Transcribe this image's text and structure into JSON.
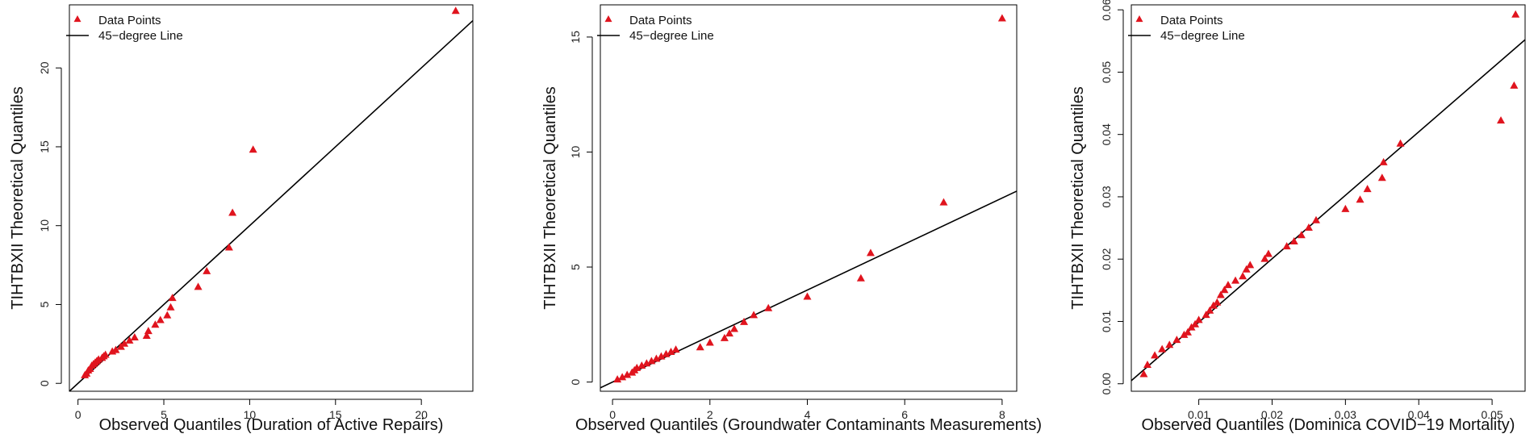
{
  "colors": {
    "points": "#e0141e",
    "line": "#000000",
    "frame": "#000000"
  },
  "legend": {
    "points_label": "Data Points",
    "line_label": "45−degree Line"
  },
  "chart_data": [
    {
      "type": "scatter",
      "title": "",
      "xlabel": "Observed Quantiles (Duration of Active Repairs)",
      "ylabel": "TIHTBXII Theoretical Quantiles",
      "xlim": [
        -0.5,
        23
      ],
      "ylim": [
        -0.5,
        24
      ],
      "xticks": [
        0,
        5,
        10,
        15,
        20
      ],
      "yticks": [
        0,
        5,
        10,
        15,
        20
      ],
      "xtick_labels": [
        "0",
        "5",
        "10",
        "15",
        "20"
      ],
      "ytick_labels": [
        "0",
        "5",
        "10",
        "15",
        "20"
      ],
      "line": {
        "x1": -0.5,
        "y1": -0.5,
        "x2": 23,
        "y2": 23
      },
      "x": [
        0.4,
        0.5,
        0.6,
        0.7,
        0.8,
        0.9,
        1.0,
        1.1,
        1.2,
        1.4,
        1.5,
        1.6,
        2.0,
        2.2,
        2.5,
        2.7,
        3.0,
        3.3,
        4.0,
        4.1,
        4.5,
        4.8,
        5.2,
        5.4,
        5.5,
        7.0,
        7.5,
        8.8,
        9.0,
        10.2,
        22.0
      ],
      "y": [
        0.5,
        0.6,
        0.8,
        0.9,
        1.1,
        1.2,
        1.3,
        1.4,
        1.5,
        1.6,
        1.7,
        1.8,
        2.0,
        2.1,
        2.3,
        2.5,
        2.7,
        2.9,
        3.0,
        3.3,
        3.7,
        4.0,
        4.3,
        4.8,
        5.4,
        6.1,
        7.1,
        8.6,
        10.8,
        14.8,
        23.6
      ]
    },
    {
      "type": "scatter",
      "title": "",
      "xlabel": "Observed Quantiles (Groundwater Contaminants Measurements)",
      "ylabel": "TIHTBXII Theoretical Quantiles",
      "xlim": [
        -0.25,
        8.3
      ],
      "ylim": [
        -0.4,
        16.4
      ],
      "xticks": [
        0,
        2,
        4,
        6,
        8
      ],
      "yticks": [
        0,
        5,
        10,
        15
      ],
      "xtick_labels": [
        "0",
        "2",
        "4",
        "6",
        "8"
      ],
      "ytick_labels": [
        "0",
        "5",
        "10",
        "15"
      ],
      "line": {
        "x1": -0.25,
        "y1": -0.25,
        "x2": 8.3,
        "y2": 8.3
      },
      "x": [
        0.1,
        0.2,
        0.3,
        0.4,
        0.45,
        0.5,
        0.6,
        0.7,
        0.8,
        0.9,
        1.0,
        1.1,
        1.2,
        1.3,
        1.8,
        2.0,
        2.3,
        2.4,
        2.5,
        2.7,
        2.9,
        3.2,
        4.0,
        5.1,
        5.3,
        6.8,
        8.0
      ],
      "y": [
        0.1,
        0.2,
        0.3,
        0.4,
        0.5,
        0.6,
        0.7,
        0.8,
        0.9,
        1.0,
        1.1,
        1.2,
        1.3,
        1.4,
        1.5,
        1.7,
        1.9,
        2.1,
        2.3,
        2.6,
        2.9,
        3.2,
        3.7,
        4.5,
        5.6,
        7.8,
        15.8
      ]
    },
    {
      "type": "scatter",
      "title": "",
      "xlabel": "Observed Quantiles (Dominica COVID−19 Mortality)",
      "ylabel": "TIHTBXII Theoretical Quantiles",
      "xlim": [
        0.0008,
        0.0545
      ],
      "ylim": [
        -0.0012,
        0.0608
      ],
      "xticks": [
        0.01,
        0.02,
        0.03,
        0.04,
        0.05
      ],
      "yticks": [
        0.0,
        0.01,
        0.02,
        0.03,
        0.04,
        0.05,
        0.06
      ],
      "xtick_labels": [
        "0.01",
        "0.02",
        "0.03",
        "0.04",
        "0.05"
      ],
      "ytick_labels": [
        "0.00",
        "0.01",
        "0.02",
        "0.03",
        "0.04",
        "0.05",
        "0.06"
      ],
      "line": {
        "x1": 0.0008,
        "y1": 0.0005,
        "x2": 0.0545,
        "y2": 0.0552
      },
      "x": [
        0.0025,
        0.003,
        0.004,
        0.005,
        0.006,
        0.007,
        0.008,
        0.0085,
        0.009,
        0.0095,
        0.01,
        0.011,
        0.0115,
        0.012,
        0.0125,
        0.013,
        0.0135,
        0.014,
        0.015,
        0.016,
        0.0165,
        0.017,
        0.019,
        0.0195,
        0.022,
        0.023,
        0.024,
        0.025,
        0.026,
        0.03,
        0.032,
        0.033,
        0.035,
        0.0352,
        0.0375,
        0.0512,
        0.053,
        0.0532
      ],
      "y": [
        0.0015,
        0.003,
        0.0045,
        0.0055,
        0.0062,
        0.007,
        0.0078,
        0.0082,
        0.009,
        0.0095,
        0.0102,
        0.011,
        0.0117,
        0.0125,
        0.013,
        0.0142,
        0.015,
        0.0158,
        0.0165,
        0.0172,
        0.0183,
        0.019,
        0.02,
        0.0208,
        0.022,
        0.0228,
        0.0238,
        0.025,
        0.0262,
        0.028,
        0.0295,
        0.0312,
        0.033,
        0.0355,
        0.0385,
        0.0422,
        0.0478,
        0.0592
      ]
    }
  ]
}
